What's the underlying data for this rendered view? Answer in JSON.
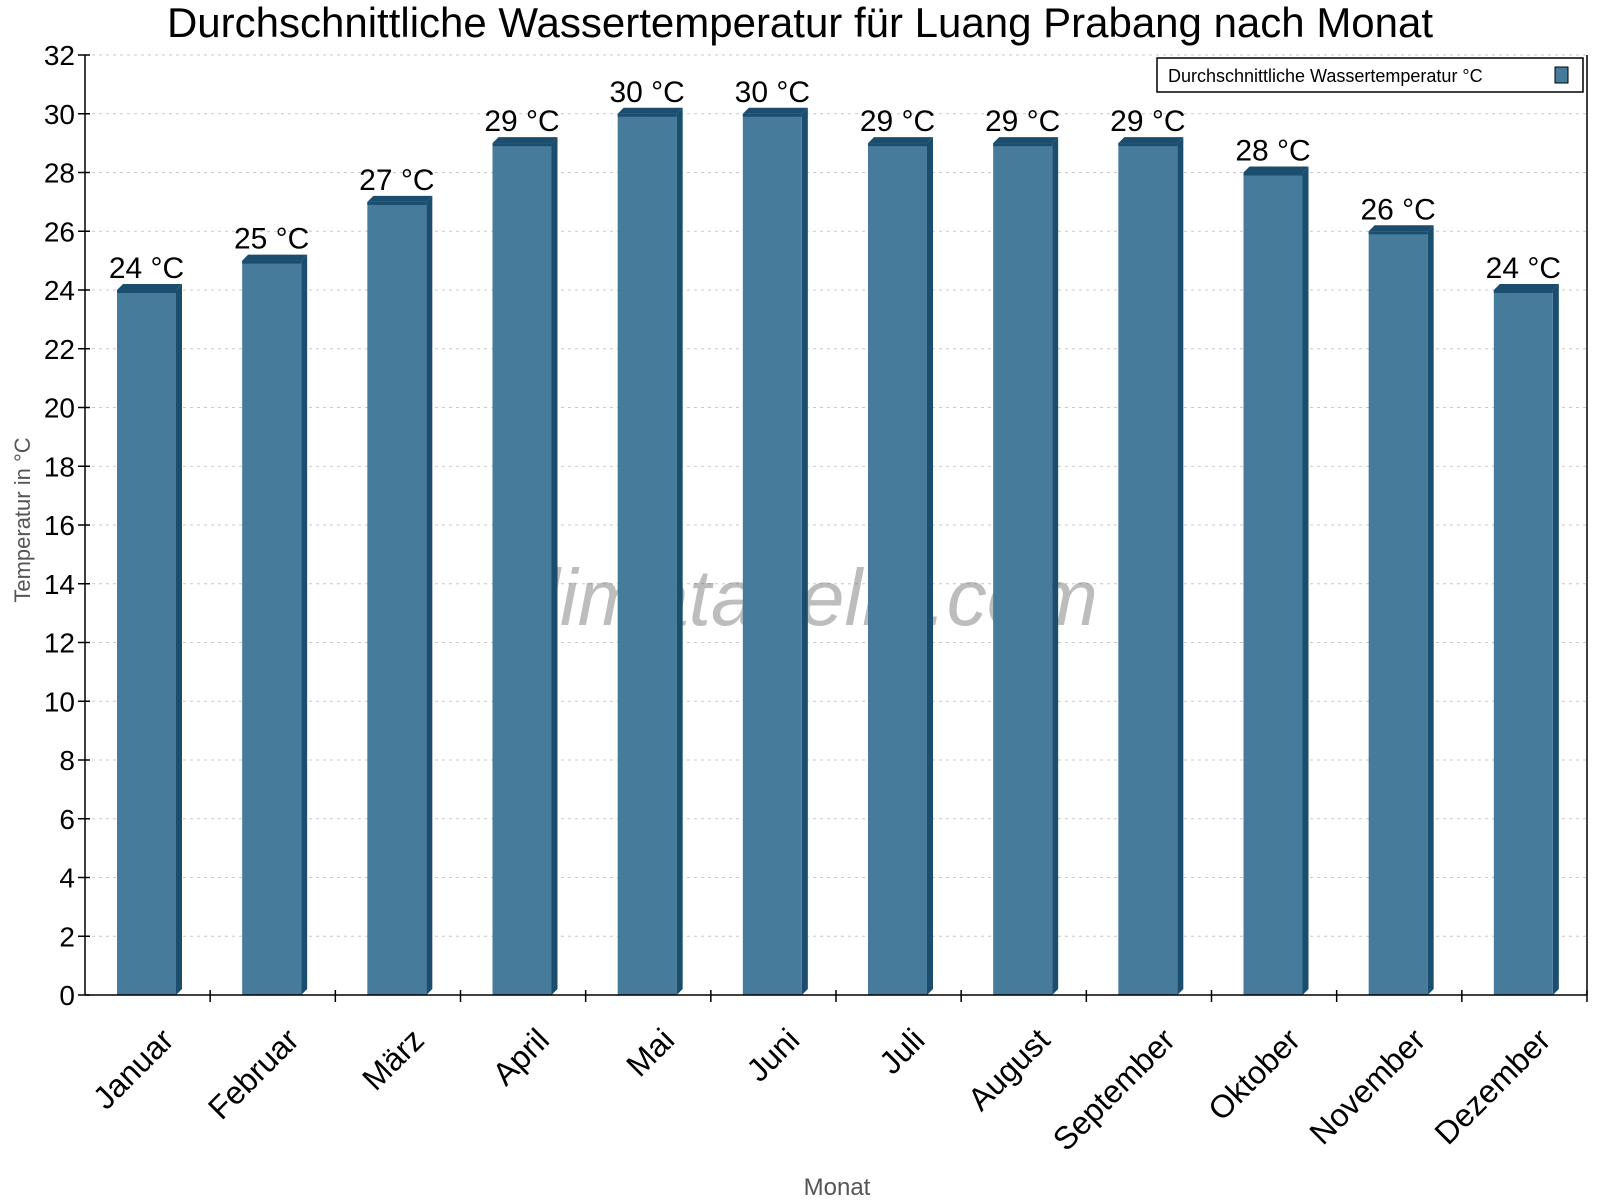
{
  "chart_data": {
    "type": "bar",
    "title": "Durchschnittliche Wassertemperatur für Luang Prabang nach Monat",
    "xlabel": "Monat",
    "ylabel": "Temperatur in °C",
    "categories": [
      "Januar",
      "Februar",
      "März",
      "April",
      "Mai",
      "Juni",
      "Juli",
      "August",
      "September",
      "Oktober",
      "November",
      "Dezember"
    ],
    "series": [
      {
        "name": "Durchschnittliche Wassertemperatur °C",
        "values": [
          24,
          25,
          27,
          29,
          30,
          30,
          29,
          29,
          29,
          28,
          26,
          24
        ],
        "color": "#467b9c",
        "side_color": "#1a4d6e"
      }
    ],
    "value_labels": [
      "24 °C",
      "25 °C",
      "27 °C",
      "29 °C",
      "30 °C",
      "30 °C",
      "29 °C",
      "29 °C",
      "29 °C",
      "28 °C",
      "26 °C",
      "24 °C"
    ],
    "ylim": [
      0,
      32
    ],
    "yticks": [
      "0",
      "2",
      "4",
      "6",
      "8",
      "10",
      "12",
      "14",
      "16",
      "18",
      "20",
      "22",
      "24",
      "26",
      "28",
      "30",
      "32"
    ],
    "grid": true,
    "legend_position": "top-right",
    "watermark": "klimatabelle.com"
  }
}
